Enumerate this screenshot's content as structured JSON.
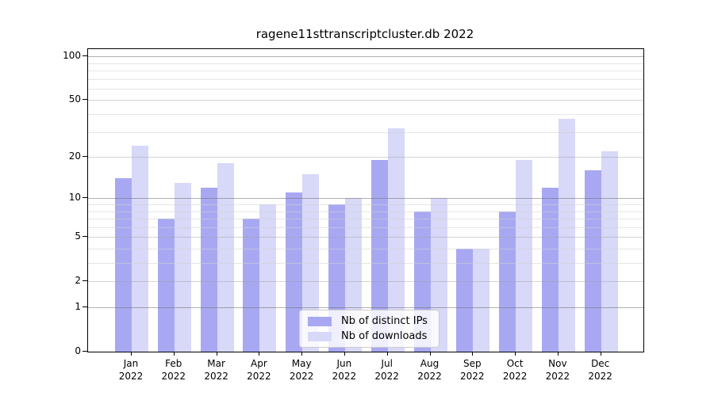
{
  "chart_data": {
    "type": "bar",
    "title": "ragene11sttranscriptcluster.db 2022",
    "xlabel": "",
    "ylabel": "",
    "yscale": "log1p",
    "ylim": [
      0,
      112
    ],
    "grid": "on",
    "categories": [
      "Jan 2022",
      "Feb 2022",
      "Mar 2022",
      "Apr 2022",
      "May 2022",
      "Jun 2022",
      "Jul 2022",
      "Aug 2022",
      "Sep 2022",
      "Oct 2022",
      "Nov 2022",
      "Dec 2022"
    ],
    "series": [
      {
        "name": "Nb of distinct IPs",
        "color": "#a8a8f2",
        "values": [
          14,
          7,
          12,
          7,
          11,
          9,
          19,
          8,
          4,
          8,
          12,
          16
        ]
      },
      {
        "name": "Nb of downloads",
        "color": "#d8d8f8",
        "values": [
          24,
          13,
          18,
          9,
          15,
          10,
          32,
          10,
          4,
          19,
          37,
          22
        ]
      }
    ],
    "ytick_values": [
      0,
      1,
      2,
      5,
      10,
      20,
      50,
      100
    ],
    "grid_values_major": [
      1,
      10,
      100
    ],
    "grid_values_mid": [
      2,
      5,
      20,
      50
    ],
    "grid_values_minor": [
      3,
      4,
      6,
      7,
      8,
      9,
      30,
      40,
      60,
      70,
      80,
      90
    ],
    "legend_position": "inside-bottom-center"
  }
}
